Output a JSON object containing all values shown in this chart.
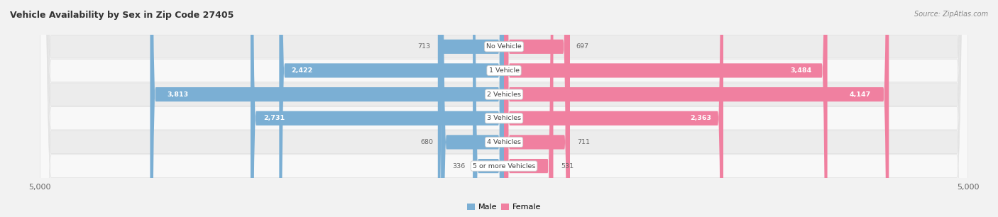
{
  "title": "Vehicle Availability by Sex in Zip Code 27405",
  "source": "Source: ZipAtlas.com",
  "categories": [
    "No Vehicle",
    "1 Vehicle",
    "2 Vehicles",
    "3 Vehicles",
    "4 Vehicles",
    "5 or more Vehicles"
  ],
  "male_values": [
    713,
    2422,
    3813,
    2731,
    680,
    336
  ],
  "female_values": [
    697,
    3484,
    4147,
    2363,
    711,
    531
  ],
  "max_val": 5000,
  "male_color": "#7BAFD4",
  "female_color": "#F080A0",
  "male_light_color": "#C5D8EE",
  "female_light_color": "#F8C0D0",
  "bg_color": "#F2F2F2",
  "row_colors": [
    "#ECECEC",
    "#F8F8F8"
  ],
  "label_color": "#666666",
  "title_color": "#333333",
  "value_inside_color": "#FFFFFF",
  "value_outside_color": "#666666",
  "legend_male_color": "#7BAFD4",
  "legend_female_color": "#F080A0",
  "inside_threshold": 1200
}
